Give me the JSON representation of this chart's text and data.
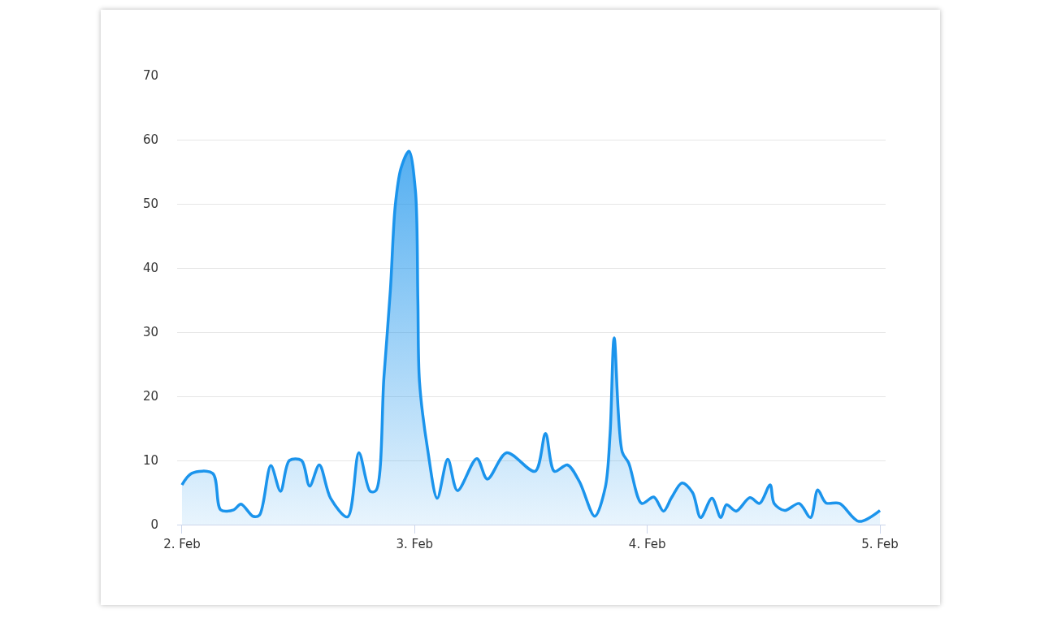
{
  "chart_data": {
    "type": "area",
    "x": [
      "--02-02T00:00",
      "--02-02T01:00",
      "--02-02T03:10",
      "--02-02T04:00",
      "--02-02T05:20",
      "--02-02T06:05",
      "--02-02T07:20",
      "--02-02T08:00",
      "--02-02T09:10",
      "--02-02T10:10",
      "--02-02T11:05",
      "--02-02T12:20",
      "--02-02T13:10",
      "--02-02T14:10",
      "--02-02T15:20",
      "--02-02T17:05",
      "--02-02T18:15",
      "--02-02T19:25",
      "--02-02T20:00",
      "--02-02T20:50",
      "--02-02T21:30",
      "--02-02T22:00",
      "--02-02T22:35",
      "--02-02T23:25",
      "--02-03T00:05",
      "--02-03T00:20",
      "--02-03T00:30",
      "--02-03T01:20",
      "--02-03T02:20",
      "--02-03T03:25",
      "--02-03T04:25",
      "--02-03T06:25",
      "--02-03T07:30",
      "--02-03T09:30",
      "--02-03T12:25",
      "--02-03T13:30",
      "--02-03T14:25",
      "--02-03T15:45",
      "--02-03T17:00",
      "--02-03T18:35",
      "--02-03T19:40",
      "--02-03T20:10",
      "--02-03T20:35",
      "--02-03T21:25",
      "--02-03T22:05",
      "--02-03T23:25",
      "--02-04T00:40",
      "--02-04T01:40",
      "--02-04T02:30",
      "--02-04T03:35",
      "--02-04T04:40",
      "--02-04T05:30",
      "--02-04T06:40",
      "--02-04T07:35",
      "--02-04T08:10",
      "--02-04T09:10",
      "--02-04T10:35",
      "--02-04T11:35",
      "--02-04T12:40",
      "--02-04T13:05",
      "--02-04T14:10",
      "--02-04T15:40",
      "--02-04T16:50",
      "--02-04T17:35",
      "--02-04T18:25",
      "--02-04T19:50",
      "--02-04T21:50",
      "--02-05T00:00"
    ],
    "series": [
      {
        "color": "#1b94ec",
        "values": [
          6.2,
          8,
          8,
          2.3,
          2.3,
          3.2,
          1.3,
          1.5,
          9.2,
          5.2,
          10,
          10,
          6,
          9.3,
          4.1,
          1.2,
          11.2,
          5.2,
          5.3,
          23,
          36.6,
          49.7,
          55.5,
          58.2,
          52,
          35,
          22.3,
          11.8,
          4.1,
          10.2,
          5.3,
          10.3,
          7.1,
          11.2,
          8.3,
          14.2,
          8.3,
          9.3,
          6.7,
          1.3,
          5.8,
          14.3,
          29.1,
          11.3,
          9.6,
          3.3,
          4.3,
          2.1,
          4.2,
          6.5,
          5,
          1.1,
          4.1,
          1.1,
          3.1,
          2.1,
          4.2,
          3.3,
          6.2,
          3.3,
          2.2,
          3.3,
          1.1,
          5.4,
          3.4,
          3.3,
          0.5,
          2.2
        ]
      }
    ],
    "xlim": [
      "--02-01T23:30",
      "--02-05T00:35"
    ],
    "xticks": [
      {
        "value": "--02-02",
        "label": "2. Feb"
      },
      {
        "value": "--02-03",
        "label": "3. Feb"
      },
      {
        "value": "--02-04",
        "label": "4. Feb"
      },
      {
        "value": "--02-05",
        "label": "5. Feb"
      }
    ],
    "ylim": [
      0,
      70
    ],
    "yticks": [
      0,
      10,
      20,
      30,
      40,
      50,
      60,
      70
    ],
    "grid": "y"
  }
}
